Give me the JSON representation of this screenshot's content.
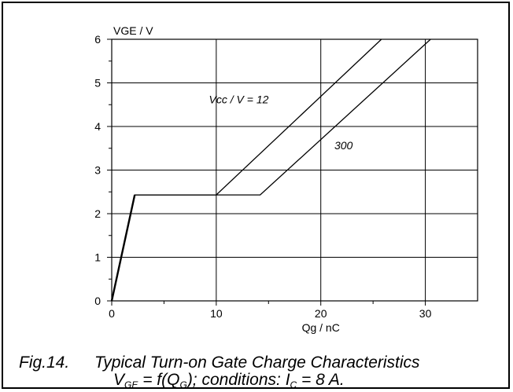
{
  "chart_data": {
    "type": "line",
    "title": "",
    "xlabel": "Qg / nC",
    "ylabel": "VGE / V",
    "xlim": [
      0,
      35
    ],
    "ylim": [
      0,
      6
    ],
    "x_ticks": [
      0,
      10,
      20,
      30
    ],
    "y_ticks": [
      0,
      1,
      2,
      3,
      4,
      5,
      6
    ],
    "grid": true,
    "series": [
      {
        "name": "Vcc / V = 12",
        "x": [
          0,
          2.2,
          10,
          25.8
        ],
        "y": [
          0,
          2.43,
          2.43,
          6
        ]
      },
      {
        "name": "300",
        "x": [
          0,
          2.2,
          14.2,
          30.5
        ],
        "y": [
          0,
          2.43,
          2.43,
          6
        ]
      }
    ]
  },
  "caption": {
    "figure_number": "Fig.14.",
    "title": "Typical Turn-on Gate Charge Characteristics",
    "formula_v": "V",
    "formula_v_sub": "GE",
    "formula_mid": " = f(Q",
    "formula_q_sub": "G",
    "formula_cond": "); conditions: I",
    "formula_i_sub": "C",
    "formula_end": " = 8 A."
  }
}
